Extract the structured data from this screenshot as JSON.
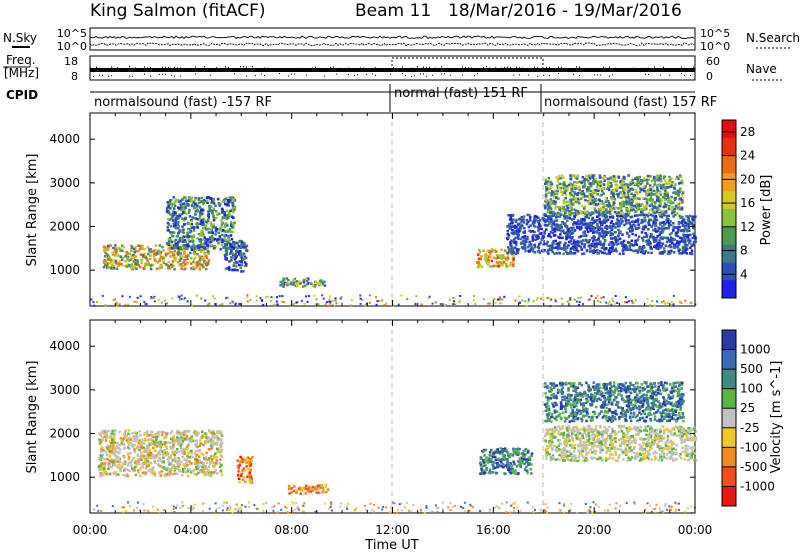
{
  "header": {
    "station": "King Salmon (fitACF)",
    "beam": "Beam 11",
    "date_range": "18/Mar/2016 - 19/Mar/2016"
  },
  "noise_panel": {
    "left_label": "N.Sky",
    "right_label": "N.Search",
    "left_ticks": [
      "10^5",
      "10^0"
    ],
    "right_ticks": [
      "10^5",
      "10^0"
    ]
  },
  "freq_panel": {
    "left_label_1": "Freq.",
    "left_label_2": "[MHz]",
    "right_label": "Nave",
    "left_ticks": [
      "18",
      "8"
    ],
    "right_ticks": [
      "60",
      "0"
    ]
  },
  "cpid": {
    "label": "CPID",
    "segments": [
      {
        "text": "normalsound (fast) -157 RF"
      },
      {
        "text": "normal (fast) 151 RF"
      },
      {
        "text": "normalsound (fast) 157 RF"
      }
    ]
  },
  "time_axis": {
    "label": "Time UT",
    "ticks": [
      "00:00",
      "04:00",
      "08:00",
      "12:00",
      "16:00",
      "20:00",
      "00:00"
    ]
  },
  "range_axis": {
    "label": "Slant Range [km]",
    "ticks": [
      "1000",
      "2000",
      "3000",
      "4000"
    ]
  },
  "power_colorbar": {
    "label": "Power [dB]",
    "ticks": [
      "4",
      "8",
      "12",
      "16",
      "20",
      "24",
      "28"
    ],
    "colors": [
      "#1f1fe8",
      "#2f4fb8",
      "#3a7a88",
      "#4d9a50",
      "#8ac23a",
      "#d8c820",
      "#f0a020",
      "#f06a18",
      "#e83010",
      "#e01010"
    ]
  },
  "velocity_colorbar": {
    "label": "Velocity [m s^-1]",
    "ticks": [
      "1000",
      "500",
      "100",
      "25",
      "-25",
      "-100",
      "-500",
      "-1000"
    ],
    "colors": [
      "#2c3aa8",
      "#3a6ab8",
      "#3d8a80",
      "#55b840",
      "#c0c0c0",
      "#f0c828",
      "#f08a20",
      "#f05018",
      "#e81810"
    ]
  },
  "chart_data": [
    {
      "type": "heatmap",
      "title": "Power",
      "xlabel": "Time UT",
      "ylabel": "Slant Range [km]",
      "xlim": [
        0,
        24
      ],
      "ylim": [
        180,
        4600
      ],
      "colorbar_range_db": [
        0,
        30
      ],
      "regions": [
        {
          "t": [
            0.5,
            4.7
          ],
          "range": [
            1050,
            1600
          ],
          "level": "12-24 dB"
        },
        {
          "t": [
            3.0,
            5.7
          ],
          "range": [
            1500,
            2700
          ],
          "level": "8-16 dB"
        },
        {
          "t": [
            5.3,
            6.2
          ],
          "range": [
            1000,
            1700
          ],
          "level": "4-12 dB"
        },
        {
          "t": [
            7.5,
            9.3
          ],
          "range": [
            650,
            850
          ],
          "level": "4-12 dB"
        },
        {
          "t": [
            15.3,
            16.8
          ],
          "range": [
            1100,
            1500
          ],
          "level": "16-24 dB"
        },
        {
          "t": [
            16.5,
            24
          ],
          "range": [
            1400,
            2300
          ],
          "level": "4-12 dB"
        },
        {
          "t": [
            18.0,
            23.5
          ],
          "range": [
            2300,
            3200
          ],
          "level": "8-20 dB"
        }
      ]
    },
    {
      "type": "heatmap",
      "title": "Velocity",
      "xlabel": "Time UT",
      "ylabel": "Slant Range [km]",
      "xlim": [
        0,
        24
      ],
      "ylim": [
        180,
        4600
      ],
      "colorbar_range_ms": [
        -1000,
        1000
      ],
      "regions": [
        {
          "t": [
            0.3,
            5.2
          ],
          "range": [
            1050,
            2100
          ],
          "v": "-25 to 25"
        },
        {
          "t": [
            5.8,
            6.4
          ],
          "range": [
            900,
            1500
          ],
          "v": "-500 to -100"
        },
        {
          "t": [
            7.8,
            9.4
          ],
          "range": [
            650,
            850
          ],
          "v": "-500 to -100"
        },
        {
          "t": [
            15.4,
            17.5
          ],
          "range": [
            1100,
            1700
          ],
          "v": "100 to 500"
        },
        {
          "t": [
            18.0,
            24.0
          ],
          "range": [
            1400,
            2200
          ],
          "v": "-25 to 25"
        },
        {
          "t": [
            18.0,
            23.5
          ],
          "range": [
            2300,
            3200
          ],
          "v": "100 to 1000"
        }
      ]
    }
  ]
}
